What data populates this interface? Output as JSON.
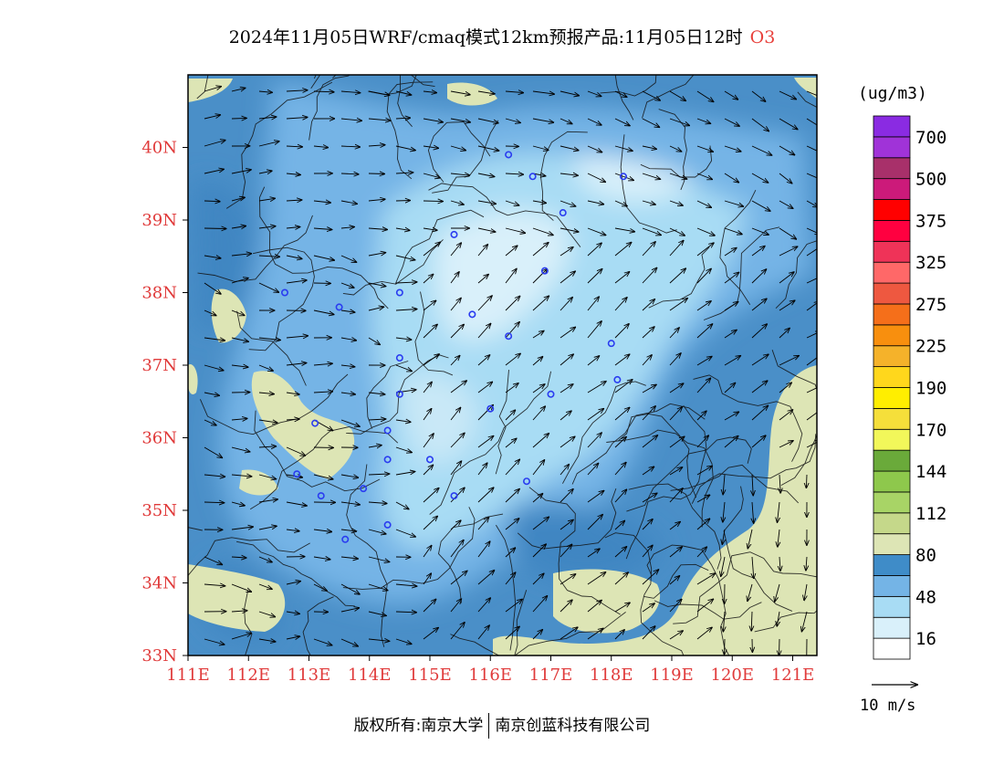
{
  "title": {
    "main": "2024年11月05日WRF/cmaq模式12km预报产品:11月05日12时",
    "species": "O3"
  },
  "map": {
    "lon_range": [
      111,
      121.4
    ],
    "lat_range": [
      33,
      41
    ],
    "lat_labels": [
      "40N",
      "39N",
      "38N",
      "37N",
      "36N",
      "35N",
      "34N",
      "33N"
    ],
    "lat_values": [
      40,
      39,
      38,
      37,
      36,
      35,
      34,
      33
    ],
    "lon_labels": [
      "111E",
      "112E",
      "113E",
      "114E",
      "115E",
      "116E",
      "117E",
      "118E",
      "119E",
      "120E",
      "121E"
    ],
    "lon_values": [
      111,
      112,
      113,
      114,
      115,
      116,
      117,
      118,
      119,
      120,
      121
    ],
    "city_markers": [
      [
        116.3,
        39.9
      ],
      [
        116.7,
        39.6
      ],
      [
        117.2,
        39.1
      ],
      [
        118.2,
        39.6
      ],
      [
        115.4,
        38.8
      ],
      [
        116.9,
        38.3
      ],
      [
        114.5,
        38.0
      ],
      [
        115.7,
        37.7
      ],
      [
        116.3,
        37.4
      ],
      [
        118.0,
        37.3
      ],
      [
        112.6,
        38.0
      ],
      [
        113.5,
        37.8
      ],
      [
        114.5,
        37.1
      ],
      [
        114.5,
        36.6
      ],
      [
        116.0,
        36.4
      ],
      [
        117.0,
        36.6
      ],
      [
        118.1,
        36.8
      ],
      [
        113.1,
        36.2
      ],
      [
        114.3,
        36.1
      ],
      [
        114.3,
        35.7
      ],
      [
        115.0,
        35.7
      ],
      [
        112.8,
        35.5
      ],
      [
        113.2,
        35.2
      ],
      [
        113.9,
        35.3
      ],
      [
        115.4,
        35.2
      ],
      [
        116.6,
        35.4
      ],
      [
        114.3,
        34.8
      ],
      [
        113.6,
        34.6
      ]
    ]
  },
  "colorbar": {
    "unit": "(ug/m3)",
    "colors": [
      "#ffffff",
      "#d9f0fa",
      "#a8dcf4",
      "#74b4e6",
      "#3f8cc8",
      "#dde5b5",
      "#c5d88a",
      "#a8d466",
      "#8ec84c",
      "#6aaa3a",
      "#f2f75a",
      "#f5df3a",
      "#ffee00",
      "#ffd71c",
      "#f5b22a",
      "#f88f0e",
      "#f56f1a",
      "#ee5840",
      "#ff6868",
      "#ef3358",
      "#ff0040",
      "#ff0000",
      "#cc1a7a",
      "#a8306a",
      "#a033d8",
      "#8a2be2"
    ],
    "labels": [
      "16",
      "48",
      "80",
      "112",
      "144",
      "170",
      "190",
      "225",
      "275",
      "325",
      "375",
      "500",
      "700"
    ]
  },
  "reference_vector": "10 m/s",
  "footer": {
    "left": "版权所有:南京大学",
    "right": "南京创蓝科技有限公司"
  }
}
